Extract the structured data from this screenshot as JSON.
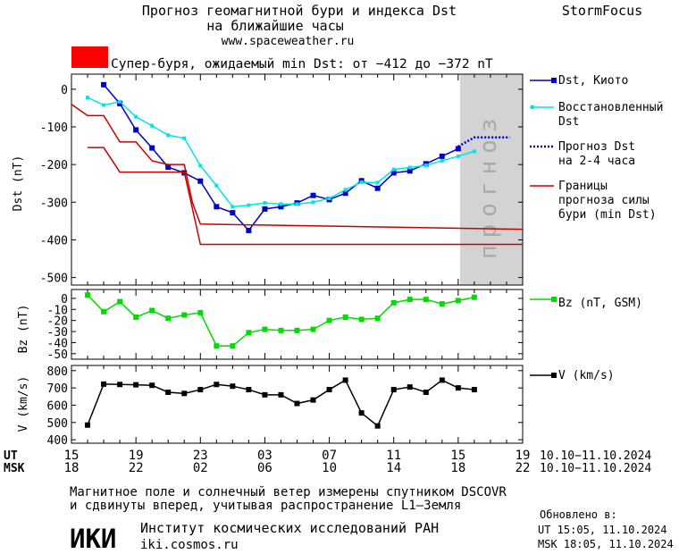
{
  "header": {
    "title_line1": "Прогноз геомагнитной бури и индекса Dst",
    "title_line2": "на ближайшие часы",
    "url": "www.spaceweather.ru",
    "brand": "StormFocus",
    "storm_label": "Супер-буря, ожидаемый min Dst: от −412 до −372 nT"
  },
  "forecast_band_text": "прогноз",
  "footer": {
    "note_line1": "Магнитное поле и солнечный ветер измерены спутником DSCOVR",
    "note_line2": "и сдвинуты вперед, учитывая распространение L1–Земля",
    "logo_text": "ИКИ",
    "institute": "Институт космических исследований РАН",
    "site": "iki.cosmos.ru",
    "updated_label": "Обновлено в:",
    "updated_ut": "UT  15:05, 11.10.2024",
    "updated_msk": "MSK 18:05, 11.10.2024"
  },
  "colors": {
    "dst_kyoto": "#0000c8",
    "dst_restored": "#00e6e6",
    "forecast": "#0000c8",
    "storm_bounds": "#c80000",
    "bz": "#00dc00",
    "v": "#000000",
    "forecast_band": "#d3d3d3",
    "storm_badge": "#ff0000"
  },
  "chart_data": [
    {
      "type": "line",
      "panel": "dst",
      "ylabel": "Dst (nT)",
      "ylim": [
        -520,
        40
      ],
      "yticks": [
        0,
        -100,
        -200,
        -300,
        -400,
        -500
      ],
      "x_range_hours": [
        0,
        28
      ],
      "forecast_from_hour": 24,
      "series": [
        {
          "name": "Dst, Киото",
          "style": "line-square",
          "x": [
            2,
            3,
            4,
            5,
            6,
            7,
            8,
            9,
            10,
            11,
            12,
            13,
            14,
            15,
            16,
            17,
            18,
            19,
            20,
            21,
            22,
            23,
            24
          ],
          "y": [
            12,
            -38,
            -108,
            -156,
            -207,
            -222,
            -244,
            -312,
            -328,
            -375,
            -318,
            -312,
            -302,
            -282,
            -293,
            -276,
            -243,
            -263,
            -222,
            -217,
            -198,
            -178,
            -158
          ]
        },
        {
          "name": "Восстановленный Dst",
          "style": "line-square",
          "x": [
            1,
            2,
            3,
            4,
            5,
            6,
            7,
            8,
            9,
            10,
            11,
            12,
            13,
            14,
            15,
            16,
            17,
            18,
            19,
            20,
            21,
            22,
            23,
            24,
            25
          ],
          "y": [
            -22,
            -42,
            -33,
            -73,
            -97,
            -122,
            -130,
            -203,
            -256,
            -312,
            -308,
            -302,
            -305,
            -305,
            -300,
            -290,
            -267,
            -247,
            -248,
            -213,
            -208,
            -202,
            -190,
            -178,
            -165
          ]
        },
        {
          "name": "Прогноз Dst на 2-4 часа",
          "style": "dotted",
          "x": [
            24,
            25,
            26,
            27.2
          ],
          "y": [
            -152,
            -128,
            -128,
            -128
          ]
        },
        {
          "name": "Границы прогноза силы бури (min Dst)",
          "style": "line",
          "x": [
            0,
            1,
            2,
            3,
            4,
            5,
            6,
            6.5,
            7,
            7.5,
            8,
            28
          ],
          "y": [
            -40,
            -70,
            -70,
            -140,
            -140,
            -190,
            -200,
            -200,
            -200,
            -300,
            -358,
            -372
          ]
        },
        {
          "name": "",
          "style": "line",
          "x": [
            1,
            2,
            3,
            4,
            5,
            6,
            7,
            8,
            28
          ],
          "y": [
            -155,
            -155,
            -220,
            -220,
            -220,
            -220,
            -220,
            -412,
            -412
          ]
        }
      ],
      "legend": [
        "Dst, Киото",
        "Восстановленный Dst",
        "Прогноз Dst на 2-4 часа",
        "Границы прогноза силы бури (min Dst)"
      ]
    },
    {
      "type": "line",
      "panel": "bz",
      "ylabel": "Bz (nT)",
      "ylim": [
        -55,
        8
      ],
      "yticks": [
        0,
        -10,
        -20,
        -30,
        -40,
        -50
      ],
      "series": [
        {
          "name": "Bz (nT, GSM)",
          "x": [
            1,
            2,
            3,
            4,
            5,
            6,
            7,
            8,
            9,
            10,
            11,
            12,
            13,
            14,
            15,
            16,
            17,
            18,
            19,
            20,
            21,
            22,
            23,
            24,
            25
          ],
          "y": [
            3,
            -12,
            -3,
            -17,
            -11,
            -18,
            -15,
            -13,
            -43,
            -43,
            -31,
            -28,
            -29,
            -29,
            -28,
            -20,
            -17,
            -19,
            -18,
            -4,
            -1,
            -1,
            -5,
            -2,
            1
          ]
        }
      ],
      "legend": [
        "Bz (nT, GSM)"
      ]
    },
    {
      "type": "line",
      "panel": "v",
      "ylabel": "V (km/s)",
      "ylim": [
        380,
        830
      ],
      "yticks": [
        800,
        700,
        600,
        500,
        400
      ],
      "series": [
        {
          "name": "V (km/s)",
          "x": [
            1,
            2,
            3,
            4,
            5,
            6,
            7,
            8,
            9,
            10,
            11,
            12,
            13,
            14,
            15,
            16,
            17,
            18,
            19,
            20,
            21,
            22,
            23,
            24,
            25
          ],
          "y": [
            485,
            722,
            720,
            718,
            715,
            675,
            668,
            690,
            720,
            710,
            690,
            660,
            660,
            610,
            630,
            690,
            745,
            555,
            480,
            690,
            705,
            675,
            745,
            700,
            690
          ]
        }
      ],
      "legend": [
        "V (km/s)"
      ]
    }
  ],
  "x_axis": {
    "ut_label": "UT",
    "msk_label": "MSK",
    "ut_ticks": [
      "15",
      "19",
      "23",
      "03",
      "07",
      "11",
      "15",
      "19"
    ],
    "msk_ticks": [
      "18",
      "22",
      "02",
      "06",
      "10",
      "14",
      "18",
      "22"
    ],
    "date_range_ut": "10.10−11.10.2024",
    "date_range_msk": "10.10−11.10.2024"
  }
}
